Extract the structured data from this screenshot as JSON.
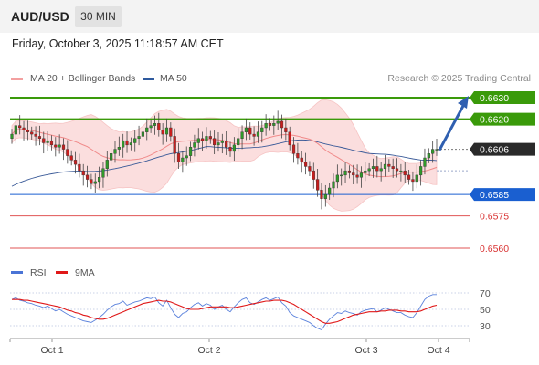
{
  "header": {
    "pair": "AUD/USD",
    "timeframe": "30 MIN",
    "timestamp": "Friday, October 3, 2025 11:18:57 AM CET"
  },
  "legend": {
    "ma20": {
      "label": "MA 20 + Bollinger Bands",
      "color": "#f08a8a"
    },
    "ma50": {
      "label": "MA 50",
      "color": "#2f5a9e"
    },
    "credit": "Research © 2025 Trading Central"
  },
  "rsi_legend": {
    "rsi": {
      "label": "RSI",
      "color": "#4a74d6"
    },
    "ma9": {
      "label": "9MA",
      "color": "#e01818"
    }
  },
  "levels": [
    {
      "value": 0.663,
      "label": "0.6630",
      "kind": "resistance",
      "color": "#3a9a0a"
    },
    {
      "value": 0.662,
      "label": "0.6620",
      "kind": "resistance",
      "color": "#3a9a0a"
    },
    {
      "value": 0.6606,
      "label": "0.6606",
      "kind": "current",
      "color": "#2a2a2a"
    },
    {
      "value": 0.6585,
      "label": "0.6585",
      "kind": "pivot",
      "color": "#1a5fd0"
    },
    {
      "value": 0.6575,
      "label": "0.6575",
      "kind": "support",
      "color": "#e05555"
    },
    {
      "value": 0.656,
      "label": "0.6560",
      "kind": "support",
      "color": "#e05555"
    }
  ],
  "chart_data": [
    {
      "type": "candlestick",
      "x_labels": [
        "Oct 1",
        "Oct 2",
        "Oct 3",
        "Oct 4"
      ],
      "ylim": [
        0.6554,
        0.6636
      ],
      "price_labels": [
        "0.6630",
        "0.6620",
        "0.6606",
        "0.6585",
        "0.6575",
        "0.6560"
      ],
      "current_price": 0.6606,
      "target_arrow": {
        "from": 0.6606,
        "to": 0.663
      },
      "candles_note": "approximate close path, 30-minute bars",
      "closes": [
        0.6613,
        0.6617,
        0.6616,
        0.6615,
        0.6614,
        0.6613,
        0.6612,
        0.6611,
        0.6609,
        0.661,
        0.6608,
        0.6607,
        0.6608,
        0.6606,
        0.6603,
        0.6601,
        0.6599,
        0.6596,
        0.6594,
        0.6592,
        0.659,
        0.6591,
        0.6593,
        0.6597,
        0.6601,
        0.6604,
        0.6606,
        0.6607,
        0.661,
        0.6608,
        0.6609,
        0.6611,
        0.6612,
        0.6614,
        0.6616,
        0.6617,
        0.6618,
        0.6615,
        0.6613,
        0.6616,
        0.6612,
        0.6604,
        0.66,
        0.6602,
        0.6603,
        0.6607,
        0.6609,
        0.6611,
        0.661,
        0.6612,
        0.6611,
        0.6608,
        0.6609,
        0.661,
        0.6607,
        0.6605,
        0.6608,
        0.6611,
        0.6614,
        0.6616,
        0.6613,
        0.6612,
        0.6614,
        0.6616,
        0.6618,
        0.6617,
        0.6618,
        0.6619,
        0.6616,
        0.6614,
        0.6608,
        0.6604,
        0.6602,
        0.66,
        0.6598,
        0.6596,
        0.6592,
        0.6587,
        0.6583,
        0.6585,
        0.6588,
        0.6591,
        0.6594,
        0.6594,
        0.6596,
        0.6595,
        0.6594,
        0.6593,
        0.6595,
        0.6596,
        0.6597,
        0.6598,
        0.6596,
        0.6597,
        0.6599,
        0.6598,
        0.6597,
        0.6596,
        0.6596,
        0.6594,
        0.6592,
        0.6591,
        0.6594,
        0.6598,
        0.6602,
        0.6604,
        0.6606,
        0.6606
      ]
    },
    {
      "type": "line",
      "title": "RSI",
      "x_labels": [
        "Oct 1",
        "Oct 2",
        "Oct 3",
        "Oct 4"
      ],
      "y_ticks": [
        70,
        50,
        30
      ],
      "ylim": [
        20,
        80
      ],
      "series": [
        {
          "name": "RSI",
          "values": [
            62,
            64,
            61,
            60,
            58,
            57,
            55,
            54,
            52,
            54,
            51,
            48,
            50,
            47,
            44,
            42,
            40,
            38,
            36,
            35,
            34,
            37,
            40,
            44,
            49,
            53,
            56,
            57,
            60,
            55,
            57,
            59,
            60,
            62,
            64,
            63,
            65,
            58,
            54,
            61,
            52,
            44,
            40,
            45,
            47,
            52,
            56,
            58,
            54,
            57,
            55,
            50,
            53,
            55,
            50,
            47,
            53,
            58,
            62,
            64,
            58,
            56,
            59,
            62,
            64,
            61,
            63,
            65,
            58,
            54,
            46,
            42,
            40,
            38,
            36,
            34,
            30,
            27,
            25,
            32,
            38,
            42,
            46,
            45,
            48,
            46,
            45,
            43,
            47,
            49,
            50,
            51,
            47,
            49,
            52,
            50,
            48,
            46,
            46,
            43,
            41,
            40,
            46,
            54,
            62,
            66,
            68,
            68
          ]
        },
        {
          "name": "9MA",
          "values": [
            62,
            62,
            62,
            61,
            61,
            60,
            59,
            58,
            57,
            56,
            55,
            54,
            53,
            51,
            49,
            48,
            46,
            45,
            43,
            42,
            40,
            39,
            38,
            38,
            39,
            41,
            43,
            45,
            47,
            49,
            51,
            53,
            55,
            57,
            58,
            59,
            60,
            61,
            60,
            60,
            59,
            57,
            55,
            53,
            51,
            50,
            50,
            50,
            51,
            52,
            53,
            53,
            53,
            53,
            53,
            52,
            52,
            53,
            54,
            55,
            56,
            57,
            58,
            59,
            60,
            60,
            61,
            61,
            61,
            60,
            58,
            56,
            53,
            50,
            47,
            44,
            41,
            38,
            35,
            33,
            33,
            34,
            35,
            37,
            39,
            41,
            43,
            44,
            45,
            46,
            47,
            47,
            47,
            48,
            48,
            49,
            49,
            49,
            48,
            48,
            47,
            47,
            47,
            48,
            50,
            52,
            54,
            55
          ]
        }
      ]
    }
  ]
}
